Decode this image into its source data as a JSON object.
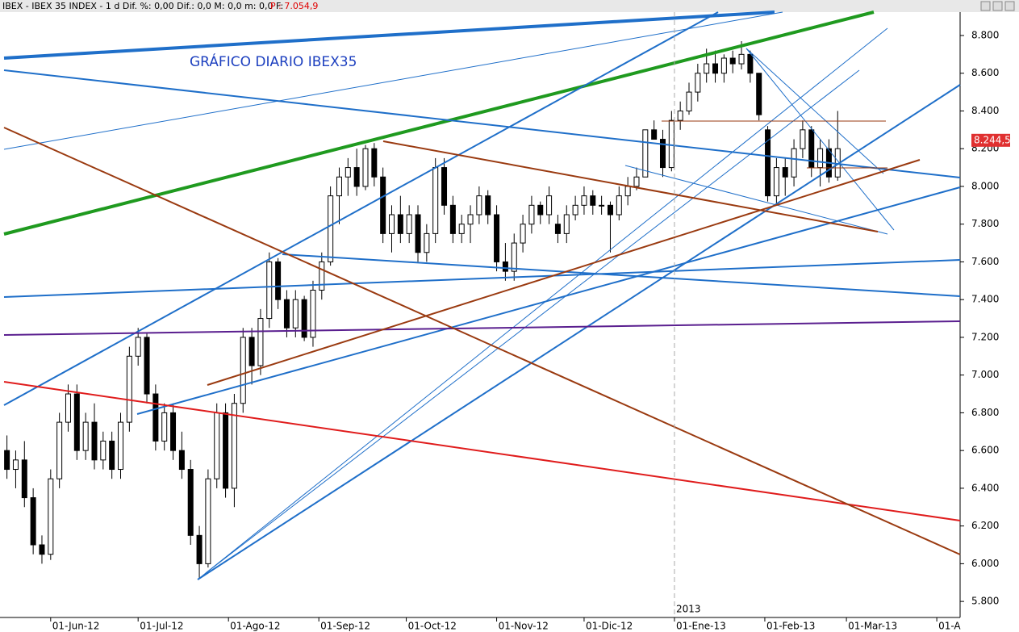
{
  "chart_data": {
    "type": "candlestick",
    "header": "IBEX - IBEX 35 INDEX - 1 d  Dif. %: 0,00  Dif.: 0,0  M: 0,0  m: 0,0  F:",
    "header_price": "P : 7.054,9",
    "title": "GRÁFICO DIARIO IBEX35",
    "year_marker": {
      "value": 230,
      "label": "2013"
    },
    "last_price": {
      "value": 8244.5,
      "label": "8.244,5"
    },
    "x": [
      1,
      4,
      7,
      10,
      13,
      16,
      19,
      22,
      25,
      28,
      31,
      34,
      37,
      40,
      43,
      46,
      49,
      52,
      55,
      58,
      61,
      64,
      67,
      70,
      73,
      76,
      79,
      82,
      85,
      88,
      91,
      94,
      97,
      100,
      103,
      106,
      109,
      112,
      115,
      118,
      121,
      124,
      127,
      130,
      133,
      136,
      139,
      142,
      145,
      148,
      151,
      154,
      157,
      160,
      163,
      166,
      169,
      172,
      175,
      178,
      181,
      184,
      187,
      190,
      193,
      196,
      199,
      202,
      205,
      208,
      211,
      214,
      217,
      220,
      223,
      226,
      229,
      232,
      235,
      238,
      241,
      244,
      247,
      250,
      253,
      256,
      259,
      262,
      265,
      268,
      271,
      274,
      277,
      280,
      283,
      286
    ],
    "open": [
      6600,
      6500,
      6550,
      6350,
      6100,
      6050,
      6450,
      6750,
      6900,
      6600,
      6750,
      6550,
      6650,
      6500,
      6750,
      7100,
      7200,
      6900,
      6650,
      6800,
      6600,
      6500,
      6150,
      6000,
      6450,
      6800,
      6400,
      6850,
      7200,
      7050,
      7300,
      7600,
      7400,
      7250,
      7400,
      7200,
      7450,
      7600,
      7950,
      8050,
      8100,
      8000,
      8200,
      8050,
      7750,
      7850,
      7750,
      7850,
      7650,
      7750,
      8100,
      7900,
      7750,
      7800,
      7850,
      7950,
      7850,
      7600,
      7550,
      7700,
      7800,
      7900,
      7850,
      7800,
      7750,
      7850,
      7900,
      7950,
      7900,
      7900,
      7850,
      7950,
      8000,
      8050,
      8300,
      8250,
      8100,
      8350,
      8400,
      8500,
      8600,
      8650,
      8600,
      8680,
      8650,
      8700,
      8600,
      8300,
      7950,
      8100,
      8050,
      8200,
      8300,
      8100,
      8200,
      8050
    ],
    "high": [
      6680,
      6600,
      6650,
      6400,
      6150,
      6500,
      6800,
      6950,
      6950,
      6800,
      6850,
      6700,
      6700,
      6800,
      7150,
      7250,
      7220,
      6950,
      6850,
      6850,
      6700,
      6550,
      6200,
      6500,
      6850,
      6850,
      6900,
      7250,
      7250,
      7350,
      7650,
      7620,
      7450,
      7450,
      7420,
      7500,
      7650,
      8000,
      8100,
      8150,
      8200,
      8220,
      8230,
      8100,
      7900,
      7950,
      7900,
      7900,
      7800,
      8150,
      8150,
      7950,
      7850,
      7900,
      8000,
      7980,
      7900,
      7700,
      7750,
      7850,
      7950,
      7920,
      8000,
      7850,
      7900,
      7950,
      8000,
      7980,
      7950,
      7920,
      8000,
      8050,
      8100,
      8300,
      8350,
      8300,
      8400,
      8450,
      8550,
      8650,
      8730,
      8720,
      8700,
      8720,
      8770,
      8720,
      8600,
      8320,
      8150,
      8150,
      8250,
      8350,
      8320,
      8250,
      8250,
      8400
    ],
    "low": [
      6450,
      6400,
      6300,
      6050,
      6000,
      6020,
      6400,
      6700,
      6550,
      6550,
      6500,
      6500,
      6450,
      6450,
      6700,
      7050,
      6850,
      6600,
      6600,
      6550,
      6450,
      6100,
      5920,
      5980,
      6400,
      6350,
      6300,
      6800,
      6950,
      7000,
      7250,
      7350,
      7200,
      7200,
      7180,
      7150,
      7400,
      7580,
      7800,
      7950,
      7950,
      7980,
      8000,
      7700,
      7650,
      7700,
      7700,
      7600,
      7600,
      7700,
      7850,
      7700,
      7700,
      7700,
      7800,
      7800,
      7550,
      7500,
      7500,
      7650,
      7750,
      7800,
      7800,
      7700,
      7700,
      7820,
      7850,
      7850,
      7850,
      7650,
      7820,
      7900,
      7980,
      8050,
      8250,
      8050,
      8080,
      8300,
      8380,
      8450,
      8550,
      8550,
      8550,
      8600,
      8620,
      8550,
      8350,
      7920,
      7900,
      7950,
      8000,
      8150,
      8050,
      8000,
      8020,
      8030
    ],
    "close": [
      6500,
      6550,
      6350,
      6100,
      6050,
      6450,
      6750,
      6900,
      6600,
      6750,
      6550,
      6650,
      6500,
      6750,
      7100,
      7200,
      6900,
      6650,
      6800,
      6600,
      6500,
      6150,
      6000,
      6450,
      6800,
      6400,
      6850,
      7200,
      7050,
      7300,
      7600,
      7400,
      7250,
      7400,
      7200,
      7450,
      7600,
      7950,
      8050,
      8100,
      8000,
      8200,
      8050,
      7750,
      7850,
      7750,
      7850,
      7650,
      7750,
      8100,
      7900,
      7750,
      7800,
      7850,
      7950,
      7850,
      7600,
      7550,
      7700,
      7800,
      7900,
      7850,
      7950,
      7750,
      7850,
      7900,
      7950,
      7900,
      7900,
      7850,
      7950,
      8000,
      8050,
      8300,
      8250,
      8100,
      8350,
      8400,
      8500,
      8600,
      8650,
      8600,
      8680,
      8650,
      8700,
      8600,
      8380,
      7950,
      8100,
      8050,
      8200,
      8300,
      8100,
      8200,
      8050,
      8200
    ],
    "xlim": [
      0,
      328
    ],
    "ylim": [
      5715,
      8924
    ],
    "xticks": [
      {
        "value": 16,
        "label": "01-Jun-12"
      },
      {
        "value": 46,
        "label": "01-Jul-12"
      },
      {
        "value": 77,
        "label": "01-Ago-12"
      },
      {
        "value": 108,
        "label": "01-Sep-12"
      },
      {
        "value": 138,
        "label": "01-Oct-12"
      },
      {
        "value": 169,
        "label": "01-Nov-12"
      },
      {
        "value": 199,
        "label": "01-Dic-12"
      },
      {
        "value": 230,
        "label": "01-Ene-13"
      },
      {
        "value": 261,
        "label": "01-Feb-13"
      },
      {
        "value": 289,
        "label": "01-Mar-13"
      },
      {
        "value": 320,
        "label": "01-A"
      }
    ],
    "yticks": [
      {
        "value": 5800,
        "label": "5.800"
      },
      {
        "value": 6000,
        "label": "6.000"
      },
      {
        "value": 6200,
        "label": "6.200"
      },
      {
        "value": 6400,
        "label": "6.400"
      },
      {
        "value": 6600,
        "label": "6.600"
      },
      {
        "value": 6800,
        "label": "6.800"
      },
      {
        "value": 7000,
        "label": "7.000"
      },
      {
        "value": 7200,
        "label": "7.200"
      },
      {
        "value": 7400,
        "label": "7.400"
      },
      {
        "value": 7600,
        "label": "7.600"
      },
      {
        "value": 7800,
        "label": "7.800"
      },
      {
        "value": 8000,
        "label": "8.000"
      },
      {
        "value": 8200,
        "label": "8.200"
      },
      {
        "value": 8400,
        "label": "8.400"
      },
      {
        "value": 8600,
        "label": "8.600"
      },
      {
        "value": 8800,
        "label": "8.800"
      }
    ]
  }
}
